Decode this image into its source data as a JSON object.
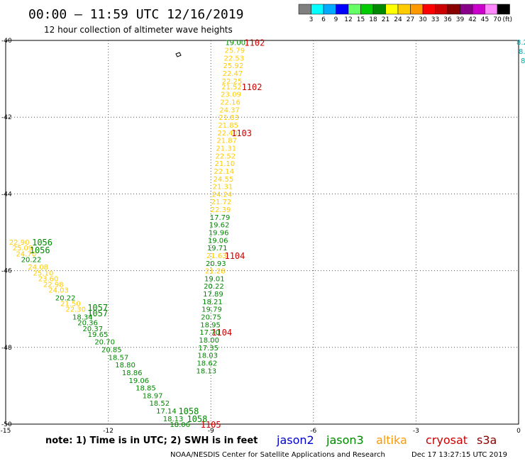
{
  "title": "00:00 – 11:59 UTC 12/16/2019",
  "subtitle": "12 hour collection of altimeter wave heights",
  "note": "note: 1) Time is in UTC; 2) SWH is in feet",
  "footer_left": "NOAA/NESDIS Center for Satellite Applications and Research",
  "footer_right": "Dec 17 13:27:15 UTC 2019",
  "legend": {
    "unit": "(ft)",
    "bins": [
      {
        "label": "3",
        "color": "#7f7f7f"
      },
      {
        "label": "6",
        "color": "#00ffff"
      },
      {
        "label": "9",
        "color": "#00aaff"
      },
      {
        "label": "12",
        "color": "#0000ff"
      },
      {
        "label": "15",
        "color": "#66ff66"
      },
      {
        "label": "18",
        "color": "#00cc00"
      },
      {
        "label": "21",
        "color": "#008800"
      },
      {
        "label": "24",
        "color": "#ffff00"
      },
      {
        "label": "27",
        "color": "#ffcc00"
      },
      {
        "label": "30",
        "color": "#ff9900"
      },
      {
        "label": "33",
        "color": "#ff0000"
      },
      {
        "label": "36",
        "color": "#cc0000"
      },
      {
        "label": "39",
        "color": "#880000"
      },
      {
        "label": "42",
        "color": "#880088"
      },
      {
        "label": "45",
        "color": "#cc00cc"
      },
      {
        "label": "70",
        "color": "#ff88ff"
      },
      {
        "label": "",
        "color": "#000000"
      }
    ]
  },
  "axes": {
    "lon_ticks": [
      {
        "label": "-15",
        "value": -15
      },
      {
        "label": "-12",
        "value": -12
      },
      {
        "label": "-9",
        "value": -9
      },
      {
        "label": "-6",
        "value": -6
      },
      {
        "label": "-3",
        "value": -3
      },
      {
        "label": "0",
        "value": 0
      }
    ],
    "lat_ticks": [
      {
        "label": "-40",
        "value": -40
      },
      {
        "label": "-42",
        "value": -42
      },
      {
        "label": "-44",
        "value": -44
      },
      {
        "label": "-46",
        "value": -46
      },
      {
        "label": "-48",
        "value": -48
      },
      {
        "label": "-50",
        "value": -50
      }
    ],
    "lon_range": [
      -15,
      0
    ],
    "lat_range": [
      -50,
      -40
    ]
  },
  "satellites": [
    {
      "name": "jason2",
      "color": "#0000cc"
    },
    {
      "name": "jason3",
      "color": "#008800"
    },
    {
      "name": "altika",
      "color": "#ff9900"
    },
    {
      "name": "cryosat",
      "color": "#cc0000"
    },
    {
      "name": "s3a",
      "color": "#880000"
    }
  ],
  "track_a": {
    "points": [
      {
        "v": "19.00",
        "c": "#008800",
        "lon": -8.58,
        "lat": -40.05
      },
      {
        "v": "25.79",
        "c": "#ffcc00",
        "lon": -8.6,
        "lat": -40.25
      },
      {
        "v": "22.53",
        "c": "#ffcc00",
        "lon": -8.62,
        "lat": -40.45
      },
      {
        "v": "25.92",
        "c": "#ffcc00",
        "lon": -8.64,
        "lat": -40.65
      },
      {
        "v": "22.47",
        "c": "#ffcc00",
        "lon": -8.66,
        "lat": -40.85
      },
      {
        "v": "22.25",
        "c": "#ffcc00",
        "lon": -8.68,
        "lat": -41.05
      },
      {
        "v": "21.52",
        "c": "#ffcc00",
        "lon": -8.69,
        "lat": -41.2
      },
      {
        "v": "23.09",
        "c": "#ffcc00",
        "lon": -8.71,
        "lat": -41.4
      },
      {
        "v": "22.16",
        "c": "#ffcc00",
        "lon": -8.73,
        "lat": -41.6
      },
      {
        "v": "24.37",
        "c": "#ffcc00",
        "lon": -8.75,
        "lat": -41.8
      },
      {
        "v": "21.83",
        "c": "#ffcc00",
        "lon": -8.77,
        "lat": -42.0
      },
      {
        "v": "21.85",
        "c": "#ffcc00",
        "lon": -8.79,
        "lat": -42.2
      },
      {
        "v": "22.40",
        "c": "#ffcc00",
        "lon": -8.81,
        "lat": -42.4
      },
      {
        "v": "21.87",
        "c": "#ffcc00",
        "lon": -8.83,
        "lat": -42.6
      },
      {
        "v": "21.31",
        "c": "#ffcc00",
        "lon": -8.85,
        "lat": -42.8
      },
      {
        "v": "22.52",
        "c": "#ffcc00",
        "lon": -8.87,
        "lat": -43.0
      },
      {
        "v": "21.10",
        "c": "#ffcc00",
        "lon": -8.89,
        "lat": -43.2
      },
      {
        "v": "22.14",
        "c": "#ffcc00",
        "lon": -8.91,
        "lat": -43.4
      },
      {
        "v": "24.55",
        "c": "#ffcc00",
        "lon": -8.93,
        "lat": -43.6
      },
      {
        "v": "21.31",
        "c": "#ffcc00",
        "lon": -8.95,
        "lat": -43.8
      },
      {
        "v": "24.24",
        "c": "#ffcc00",
        "lon": -8.97,
        "lat": -44.0
      },
      {
        "v": "21.72",
        "c": "#ffcc00",
        "lon": -8.99,
        "lat": -44.2
      },
      {
        "v": "22.39",
        "c": "#ffcc00",
        "lon": -9.01,
        "lat": -44.4
      },
      {
        "v": "17.79",
        "c": "#008800",
        "lon": -9.03,
        "lat": -44.6
      },
      {
        "v": "19.62",
        "c": "#008800",
        "lon": -9.05,
        "lat": -44.8
      },
      {
        "v": "19.96",
        "c": "#008800",
        "lon": -9.07,
        "lat": -45.0
      },
      {
        "v": "19.06",
        "c": "#008800",
        "lon": -9.09,
        "lat": -45.2
      },
      {
        "v": "19.71",
        "c": "#008800",
        "lon": -9.11,
        "lat": -45.4
      },
      {
        "v": "21.63",
        "c": "#ffcc00",
        "lon": -9.13,
        "lat": -45.6
      },
      {
        "v": "20.93",
        "c": "#008800",
        "lon": -9.15,
        "lat": -45.8
      },
      {
        "v": "21.28",
        "c": "#ffcc00",
        "lon": -9.17,
        "lat": -46.0
      },
      {
        "v": "19.01",
        "c": "#008800",
        "lon": -9.19,
        "lat": -46.2
      },
      {
        "v": "20.22",
        "c": "#008800",
        "lon": -9.21,
        "lat": -46.4
      },
      {
        "v": "17.89",
        "c": "#008800",
        "lon": -9.23,
        "lat": -46.6
      },
      {
        "v": "18.21",
        "c": "#008800",
        "lon": -9.25,
        "lat": -46.8
      },
      {
        "v": "19.79",
        "c": "#008800",
        "lon": -9.27,
        "lat": -47.0
      },
      {
        "v": "20.75",
        "c": "#008800",
        "lon": -9.29,
        "lat": -47.2
      },
      {
        "v": "18.95",
        "c": "#008800",
        "lon": -9.31,
        "lat": -47.4
      },
      {
        "v": "17.70",
        "c": "#008800",
        "lon": -9.33,
        "lat": -47.6
      },
      {
        "v": "18.00",
        "c": "#008800",
        "lon": -9.35,
        "lat": -47.8
      },
      {
        "v": "17.35",
        "c": "#008800",
        "lon": -9.37,
        "lat": -48.0
      },
      {
        "v": "18.03",
        "c": "#008800",
        "lon": -9.39,
        "lat": -48.2
      },
      {
        "v": "18.62",
        "c": "#008800",
        "lon": -9.41,
        "lat": -48.4
      },
      {
        "v": "18.13",
        "c": "#008800",
        "lon": -9.43,
        "lat": -48.6
      }
    ]
  },
  "track_b": {
    "points": [
      {
        "v": "22.90",
        "c": "#ffcc00",
        "lon": -14.9,
        "lat": -45.25
      },
      {
        "v": "25.09",
        "c": "#ffcc00",
        "lon": -14.8,
        "lat": -45.4
      },
      {
        "v": "24.70",
        "c": "#ffcc00",
        "lon": -14.7,
        "lat": -45.55
      },
      {
        "v": "20.22",
        "c": "#008800",
        "lon": -14.55,
        "lat": -45.7
      },
      {
        "v": "24.08",
        "c": "#ffcc00",
        "lon": -14.35,
        "lat": -45.9
      },
      {
        "v": "25.10",
        "c": "#ffcc00",
        "lon": -14.2,
        "lat": -46.05
      },
      {
        "v": "23.60",
        "c": "#ffcc00",
        "lon": -14.05,
        "lat": -46.2
      },
      {
        "v": "22.98",
        "c": "#ffcc00",
        "lon": -13.9,
        "lat": -46.35
      },
      {
        "v": "24.03",
        "c": "#ffcc00",
        "lon": -13.75,
        "lat": -46.5
      },
      {
        "v": "20.22",
        "c": "#008800",
        "lon": -13.55,
        "lat": -46.7
      },
      {
        "v": "21.50",
        "c": "#ffcc00",
        "lon": -13.4,
        "lat": -46.85
      },
      {
        "v": "22.30",
        "c": "#ffcc00",
        "lon": -13.25,
        "lat": -47.0
      },
      {
        "v": "18.34",
        "c": "#008800",
        "lon": -13.05,
        "lat": -47.2
      },
      {
        "v": "20.36",
        "c": "#008800",
        "lon": -12.9,
        "lat": -47.35
      },
      {
        "v": "20.37",
        "c": "#008800",
        "lon": -12.75,
        "lat": -47.5
      },
      {
        "v": "19.65",
        "c": "#008800",
        "lon": -12.6,
        "lat": -47.65
      },
      {
        "v": "20.70",
        "c": "#008800",
        "lon": -12.4,
        "lat": -47.85
      },
      {
        "v": "20.85",
        "c": "#008800",
        "lon": -12.2,
        "lat": -48.05
      },
      {
        "v": "18.57",
        "c": "#008800",
        "lon": -12.0,
        "lat": -48.25
      },
      {
        "v": "18.80",
        "c": "#008800",
        "lon": -11.8,
        "lat": -48.45
      },
      {
        "v": "18.86",
        "c": "#008800",
        "lon": -11.6,
        "lat": -48.65
      },
      {
        "v": "19.06",
        "c": "#008800",
        "lon": -11.4,
        "lat": -48.85
      },
      {
        "v": "18.85",
        "c": "#008800",
        "lon": -11.2,
        "lat": -49.05
      },
      {
        "v": "18.97",
        "c": "#008800",
        "lon": -11.0,
        "lat": -49.25
      },
      {
        "v": "18.52",
        "c": "#008800",
        "lon": -10.8,
        "lat": -49.45
      },
      {
        "v": "17.14",
        "c": "#008800",
        "lon": -10.6,
        "lat": -49.65
      },
      {
        "v": "18.13",
        "c": "#008800",
        "lon": -10.4,
        "lat": -49.85
      },
      {
        "v": "18.06",
        "c": "#008800",
        "lon": -10.2,
        "lat": -50.0
      }
    ]
  },
  "orbits": [
    {
      "label": "1102",
      "color": "#cc0000",
      "lon": -8.02,
      "lat": -40.05
    },
    {
      "label": "1102",
      "color": "#cc0000",
      "lon": -8.1,
      "lat": -41.2
    },
    {
      "label": "1103",
      "color": "#cc0000",
      "lon": -8.4,
      "lat": -42.4
    },
    {
      "label": "1104",
      "color": "#cc0000",
      "lon": -8.6,
      "lat": -45.6
    },
    {
      "label": "1104",
      "color": "#cc0000",
      "lon": -8.98,
      "lat": -47.6
    },
    {
      "label": "1105",
      "color": "#cc0000",
      "lon": -9.3,
      "lat": -50.0
    },
    {
      "label": "1056",
      "color": "#008800",
      "lon": -14.23,
      "lat": -45.25
    },
    {
      "label": "1056",
      "color": "#008800",
      "lon": -14.3,
      "lat": -45.45
    },
    {
      "label": "1057",
      "color": "#008800",
      "lon": -12.61,
      "lat": -46.95
    },
    {
      "label": "1057",
      "color": "#008800",
      "lon": -12.61,
      "lat": -47.1
    },
    {
      "label": "1058",
      "color": "#008800",
      "lon": -9.95,
      "lat": -49.65
    },
    {
      "label": "1058",
      "color": "#008800",
      "lon": -9.7,
      "lat": -49.85
    }
  ],
  "edge_values": [
    "8.2",
    "8.",
    "8"
  ],
  "edge_color": "#00aaaa"
}
